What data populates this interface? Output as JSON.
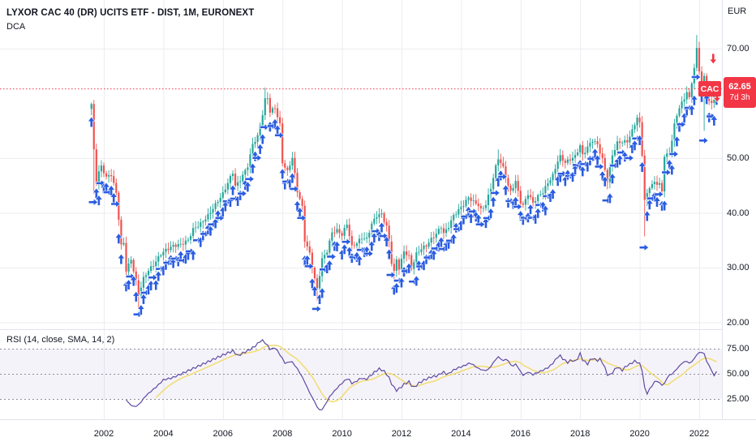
{
  "header": {
    "title": "LYXOR CAC 40 (DR) UCITS ETF - DIST, 1M, EURONEXT",
    "indicator": "DCA",
    "currency": "EUR"
  },
  "price_badge": {
    "symbol": "CAC",
    "price": "62.65",
    "countdown": "7d 3h"
  },
  "rsi_panel": {
    "label": "RSI (14, close, SMA, 14, 2)",
    "tick_labels": [
      "75.00",
      "50.00",
      "25.00"
    ],
    "tick_values": [
      75,
      50,
      25
    ]
  },
  "price_axis": {
    "tick_labels": [
      "70.00",
      "50.00",
      "40.00",
      "30.00",
      "20.00"
    ],
    "tick_values": [
      70,
      50,
      40,
      30,
      20
    ]
  },
  "time_axis": {
    "tick_labels": [
      "2002",
      "2004",
      "2006",
      "2008",
      "2010",
      "2012",
      "2014",
      "2016",
      "2018",
      "2020",
      "2022"
    ],
    "tick_values": [
      2002,
      2004,
      2006,
      2008,
      2010,
      2012,
      2014,
      2016,
      2018,
      2020,
      2022
    ]
  },
  "chart_data": {
    "type": "candlestick",
    "title": "LYXOR CAC 40 (DR) UCITS ETF - DIST, 1M, EURONEXT",
    "interval": "1M",
    "currency": "EUR",
    "current_price": 62.65,
    "x_range": [
      2001.58,
      2022.6
    ],
    "price_range_visible": [
      17,
      75
    ],
    "price_keypoints": [
      [
        2001.58,
        60.2
      ],
      [
        2001.67,
        51
      ],
      [
        2001.75,
        45.5
      ],
      [
        2001.83,
        47.5
      ],
      [
        2001.92,
        48.5
      ],
      [
        2002.08,
        46.5
      ],
      [
        2002.25,
        47
      ],
      [
        2002.42,
        43.5
      ],
      [
        2002.5,
        39
      ],
      [
        2002.58,
        34
      ],
      [
        2002.67,
        34.5
      ],
      [
        2002.75,
        29.5
      ],
      [
        2002.92,
        31.5
      ],
      [
        2003.08,
        27.5
      ],
      [
        2003.17,
        25
      ],
      [
        2003.33,
        28
      ],
      [
        2003.5,
        29.5
      ],
      [
        2003.67,
        30.5
      ],
      [
        2003.92,
        32.5
      ],
      [
        2004.08,
        33.2
      ],
      [
        2004.33,
        34
      ],
      [
        2004.58,
        34.2
      ],
      [
        2004.83,
        35
      ],
      [
        2005.0,
        37
      ],
      [
        2005.25,
        38
      ],
      [
        2005.5,
        39.5
      ],
      [
        2005.75,
        41.5
      ],
      [
        2006.0,
        43.5
      ],
      [
        2006.17,
        45.5
      ],
      [
        2006.33,
        47.5
      ],
      [
        2006.42,
        44.8
      ],
      [
        2006.58,
        46
      ],
      [
        2006.83,
        48.5
      ],
      [
        2007.0,
        52.5
      ],
      [
        2007.17,
        54
      ],
      [
        2007.33,
        58
      ],
      [
        2007.42,
        60.8
      ],
      [
        2007.5,
        61
      ],
      [
        2007.58,
        58.5
      ],
      [
        2007.75,
        59.2
      ],
      [
        2007.92,
        56
      ],
      [
        2008.0,
        49.2
      ],
      [
        2008.17,
        47.5
      ],
      [
        2008.33,
        50.2
      ],
      [
        2008.5,
        44
      ],
      [
        2008.67,
        41
      ],
      [
        2008.75,
        35
      ],
      [
        2008.92,
        32.5
      ],
      [
        2009.08,
        28
      ],
      [
        2009.17,
        26
      ],
      [
        2009.33,
        31.5
      ],
      [
        2009.5,
        33
      ],
      [
        2009.67,
        36.5
      ],
      [
        2009.83,
        36.8
      ],
      [
        2010.0,
        36
      ],
      [
        2010.17,
        38
      ],
      [
        2010.33,
        33.8
      ],
      [
        2010.5,
        34.5
      ],
      [
        2010.67,
        35.5
      ],
      [
        2010.83,
        35.2
      ],
      [
        2011.0,
        38
      ],
      [
        2011.17,
        39.5
      ],
      [
        2011.33,
        39.8
      ],
      [
        2011.5,
        37.5
      ],
      [
        2011.58,
        34.8
      ],
      [
        2011.67,
        30.8
      ],
      [
        2011.75,
        29.2
      ],
      [
        2011.83,
        31.5
      ],
      [
        2011.92,
        29.8
      ],
      [
        2012.08,
        33
      ],
      [
        2012.25,
        32
      ],
      [
        2012.33,
        29.8
      ],
      [
        2012.5,
        32.5
      ],
      [
        2012.67,
        33.5
      ],
      [
        2012.83,
        34
      ],
      [
        2013.0,
        35.2
      ],
      [
        2013.17,
        36.2
      ],
      [
        2013.33,
        37.5
      ],
      [
        2013.42,
        36.2
      ],
      [
        2013.58,
        37.5
      ],
      [
        2013.75,
        39.5
      ],
      [
        2013.92,
        40.5
      ],
      [
        2014.08,
        41.5
      ],
      [
        2014.25,
        42.8
      ],
      [
        2014.42,
        42
      ],
      [
        2014.58,
        41.5
      ],
      [
        2014.67,
        40.5
      ],
      [
        2014.83,
        41.5
      ],
      [
        2015.0,
        44.5
      ],
      [
        2015.17,
        48.5
      ],
      [
        2015.25,
        50
      ],
      [
        2015.42,
        48.2
      ],
      [
        2015.58,
        45
      ],
      [
        2015.67,
        43.8
      ],
      [
        2015.83,
        45.8
      ],
      [
        2016.0,
        42
      ],
      [
        2016.08,
        41.3
      ],
      [
        2016.25,
        43.5
      ],
      [
        2016.42,
        41.8
      ],
      [
        2016.58,
        43
      ],
      [
        2016.75,
        43.8
      ],
      [
        2016.92,
        45.5
      ],
      [
        2017.08,
        46.8
      ],
      [
        2017.25,
        49.5
      ],
      [
        2017.33,
        50.3
      ],
      [
        2017.5,
        49.2
      ],
      [
        2017.67,
        49.8
      ],
      [
        2017.83,
        50.3
      ],
      [
        2018.0,
        52.3
      ],
      [
        2018.08,
        50.5
      ],
      [
        2018.25,
        52
      ],
      [
        2018.42,
        53.3
      ],
      [
        2018.58,
        52.5
      ],
      [
        2018.75,
        49.8
      ],
      [
        2018.92,
        45.8
      ],
      [
        2019.08,
        50.5
      ],
      [
        2019.25,
        52.8
      ],
      [
        2019.42,
        53
      ],
      [
        2019.58,
        53
      ],
      [
        2019.75,
        55
      ],
      [
        2019.92,
        57.5
      ],
      [
        2020.0,
        56.3
      ],
      [
        2020.08,
        51
      ],
      [
        2020.17,
        42
      ],
      [
        2020.33,
        44.8
      ],
      [
        2020.5,
        45.5
      ],
      [
        2020.67,
        45.3
      ],
      [
        2020.75,
        43.8
      ],
      [
        2020.83,
        50.5
      ],
      [
        2021.0,
        50.8
      ],
      [
        2021.17,
        56.2
      ],
      [
        2021.33,
        59.3
      ],
      [
        2021.5,
        60.8
      ],
      [
        2021.58,
        62.3
      ],
      [
        2021.67,
        60.8
      ],
      [
        2021.75,
        63.8
      ],
      [
        2021.83,
        66.5
      ],
      [
        2021.92,
        70
      ],
      [
        2022.0,
        66
      ],
      [
        2022.08,
        63.8
      ],
      [
        2022.17,
        64.8
      ],
      [
        2022.25,
        63
      ],
      [
        2022.33,
        60.5
      ],
      [
        2022.42,
        59.8
      ],
      [
        2022.5,
        63.3
      ],
      [
        2022.58,
        62.65
      ]
    ],
    "wick_events": [
      {
        "t": 2001.67,
        "low": 43.5
      },
      {
        "t": 2003.17,
        "low": 22.5
      },
      {
        "t": 2007.42,
        "high": 62.9
      },
      {
        "t": 2009.17,
        "low": 24
      },
      {
        "t": 2011.75,
        "low": 27.3
      },
      {
        "t": 2015.25,
        "high": 51.6
      },
      {
        "t": 2018.92,
        "low": 44.3
      },
      {
        "t": 2020.17,
        "low": 35.7
      },
      {
        "t": 2021.92,
        "high": 72.5
      },
      {
        "t": 2022.17,
        "low": 55
      }
    ],
    "buy_arrow_rule": "blue DCA buy arrow plotted below nearly every monthly bar",
    "sell_arrows": [
      {
        "t": 2022.47,
        "price": 67.2
      },
      {
        "t": 2022.6,
        "price": 60.2
      }
    ],
    "rsi": {
      "label": "RSI (14, close, SMA, 14, 2)",
      "levels": [
        75,
        50,
        25
      ],
      "keypoints": [
        [
          2002.75,
          24
        ],
        [
          2002.9,
          19
        ],
        [
          2003.05,
          17
        ],
        [
          2003.2,
          20
        ],
        [
          2003.4,
          28
        ],
        [
          2003.6,
          33
        ],
        [
          2003.8,
          38
        ],
        [
          2004.0,
          44
        ],
        [
          2004.3,
          46
        ],
        [
          2004.6,
          50
        ],
        [
          2004.9,
          54
        ],
        [
          2005.2,
          58
        ],
        [
          2005.5,
          62
        ],
        [
          2005.8,
          66
        ],
        [
          2006.1,
          70
        ],
        [
          2006.35,
          73
        ],
        [
          2006.5,
          68
        ],
        [
          2006.7,
          71
        ],
        [
          2006.9,
          74
        ],
        [
          2007.1,
          78
        ],
        [
          2007.3,
          84
        ],
        [
          2007.45,
          80
        ],
        [
          2007.6,
          74
        ],
        [
          2007.75,
          76
        ],
        [
          2007.9,
          70
        ],
        [
          2008.1,
          60
        ],
        [
          2008.3,
          63
        ],
        [
          2008.5,
          55
        ],
        [
          2008.7,
          45
        ],
        [
          2008.9,
          32
        ],
        [
          2009.05,
          24
        ],
        [
          2009.2,
          15
        ],
        [
          2009.3,
          13
        ],
        [
          2009.45,
          20
        ],
        [
          2009.6,
          28
        ],
        [
          2009.75,
          33
        ],
        [
          2009.9,
          38
        ],
        [
          2010.05,
          42
        ],
        [
          2010.2,
          46
        ],
        [
          2010.35,
          40
        ],
        [
          2010.5,
          43
        ],
        [
          2010.65,
          46
        ],
        [
          2010.8,
          44
        ],
        [
          2010.95,
          48
        ],
        [
          2011.1,
          52
        ],
        [
          2011.25,
          55
        ],
        [
          2011.4,
          53
        ],
        [
          2011.55,
          48
        ],
        [
          2011.7,
          38
        ],
        [
          2011.85,
          33
        ],
        [
          2011.95,
          36
        ],
        [
          2012.1,
          40
        ],
        [
          2012.25,
          42
        ],
        [
          2012.4,
          36
        ],
        [
          2012.55,
          40
        ],
        [
          2012.7,
          43
        ],
        [
          2012.85,
          45
        ],
        [
          2013.0,
          47
        ],
        [
          2013.2,
          48
        ],
        [
          2013.4,
          52
        ],
        [
          2013.55,
          49
        ],
        [
          2013.7,
          53
        ],
        [
          2013.9,
          56
        ],
        [
          2014.1,
          58
        ],
        [
          2014.3,
          61
        ],
        [
          2014.45,
          58
        ],
        [
          2014.6,
          55
        ],
        [
          2014.8,
          53
        ],
        [
          2014.95,
          55
        ],
        [
          2015.1,
          62
        ],
        [
          2015.25,
          67
        ],
        [
          2015.4,
          63
        ],
        [
          2015.55,
          65
        ],
        [
          2015.7,
          57
        ],
        [
          2015.85,
          60
        ],
        [
          2016.0,
          52
        ],
        [
          2016.1,
          48
        ],
        [
          2016.25,
          52
        ],
        [
          2016.4,
          49
        ],
        [
          2016.55,
          51
        ],
        [
          2016.7,
          53
        ],
        [
          2016.85,
          55
        ],
        [
          2017.0,
          58
        ],
        [
          2017.15,
          63
        ],
        [
          2017.3,
          69
        ],
        [
          2017.45,
          64
        ],
        [
          2017.6,
          61
        ],
        [
          2017.7,
          64
        ],
        [
          2017.85,
          62
        ],
        [
          2018.0,
          70
        ],
        [
          2018.1,
          63
        ],
        [
          2018.25,
          60
        ],
        [
          2018.4,
          66
        ],
        [
          2018.55,
          63
        ],
        [
          2018.7,
          65
        ],
        [
          2018.8,
          58
        ],
        [
          2018.95,
          47
        ],
        [
          2019.1,
          52
        ],
        [
          2019.25,
          57
        ],
        [
          2019.4,
          53
        ],
        [
          2019.55,
          58
        ],
        [
          2019.7,
          60
        ],
        [
          2019.85,
          63
        ],
        [
          2020.0,
          60
        ],
        [
          2020.1,
          52
        ],
        [
          2020.2,
          28
        ],
        [
          2020.3,
          33
        ],
        [
          2020.45,
          40
        ],
        [
          2020.55,
          44
        ],
        [
          2020.65,
          41
        ],
        [
          2020.8,
          38
        ],
        [
          2020.95,
          48
        ],
        [
          2021.1,
          50
        ],
        [
          2021.25,
          55
        ],
        [
          2021.4,
          60
        ],
        [
          2021.55,
          63
        ],
        [
          2021.7,
          60
        ],
        [
          2021.85,
          66
        ],
        [
          2021.95,
          70
        ],
        [
          2022.05,
          73
        ],
        [
          2022.1,
          70
        ],
        [
          2022.15,
          72
        ],
        [
          2022.25,
          62
        ],
        [
          2022.35,
          58
        ],
        [
          2022.45,
          50
        ],
        [
          2022.52,
          48
        ],
        [
          2022.58,
          52
        ]
      ],
      "sma_window": 10
    },
    "colors": {
      "up": "#26a69a",
      "down": "#ef5350",
      "buy_arrow": "#2a5ce0",
      "sell_arrow": "#f23645",
      "current_price_line": "#f23645",
      "rsi_line": "#5f4ba0",
      "rsi_sma_line": "#f2dd76",
      "rsi_band_fill": "rgba(110,80,190,0.07)",
      "level_dash": "#8c8f99",
      "grid": "#ededf1",
      "separator": "#e0e3eb",
      "text": "#131722",
      "background": "#ffffff"
    }
  }
}
